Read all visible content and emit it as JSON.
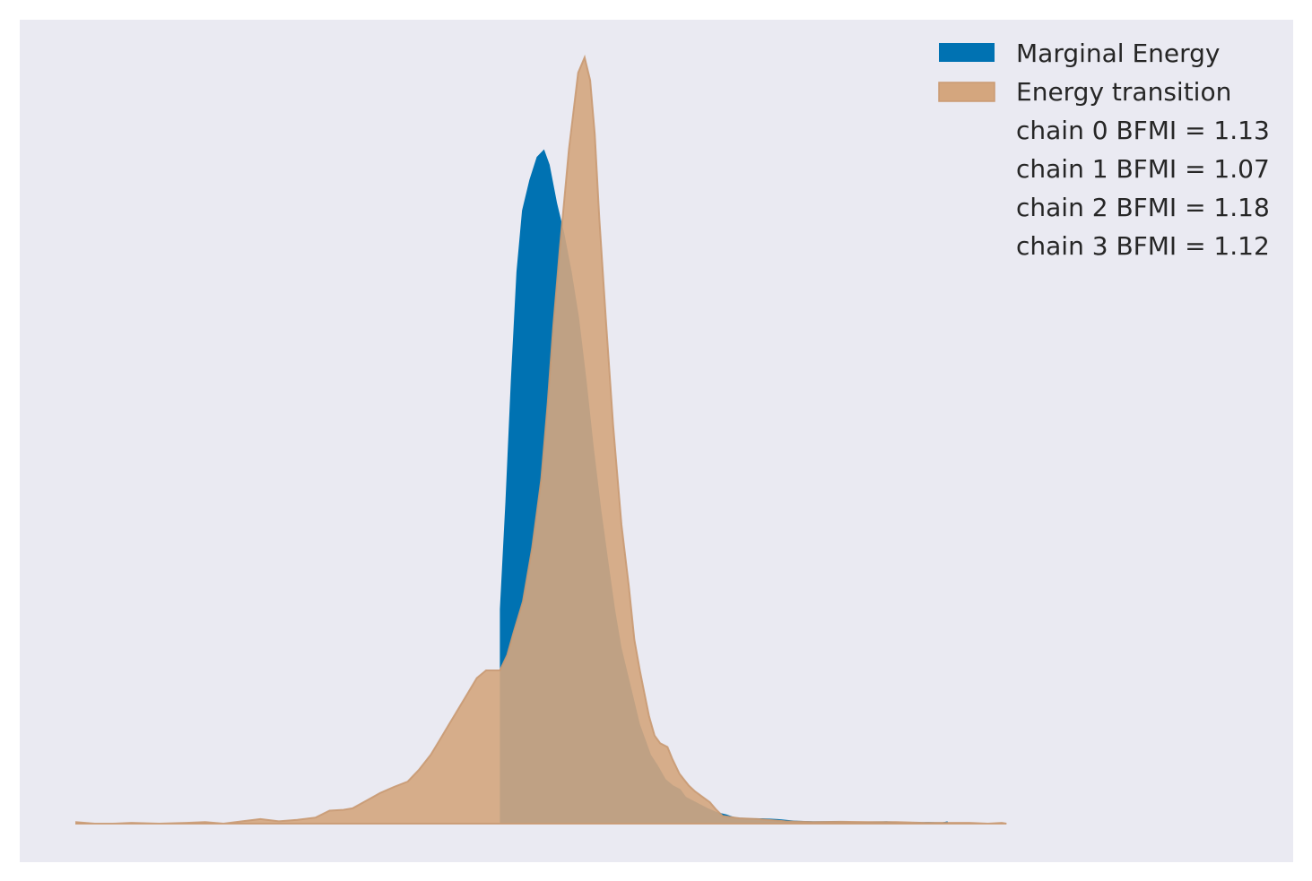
{
  "chart_data": {
    "type": "area",
    "title": "",
    "xlabel": "",
    "ylabel": "",
    "axes_visible": false,
    "grid": false,
    "legend_position": "top-right",
    "xlim": [
      -6.9,
      5.7
    ],
    "ylim": [
      0,
      1.05
    ],
    "series": [
      {
        "name": "Marginal Energy",
        "color": "#0072b2",
        "opacity": 1.0,
        "points": [
          [
            -2.3,
            0
          ],
          [
            -2.3,
            0.28
          ],
          [
            -2.24,
            0.42
          ],
          [
            -2.18,
            0.58
          ],
          [
            -2.12,
            0.72
          ],
          [
            -2.06,
            0.8
          ],
          [
            -1.98,
            0.84
          ],
          [
            -1.9,
            0.87
          ],
          [
            -1.82,
            0.88
          ],
          [
            -1.76,
            0.86
          ],
          [
            -1.68,
            0.81
          ],
          [
            -1.6,
            0.77
          ],
          [
            -1.52,
            0.72
          ],
          [
            -1.44,
            0.66
          ],
          [
            -1.36,
            0.58
          ],
          [
            -1.28,
            0.49
          ],
          [
            -1.2,
            0.41
          ],
          [
            -1.12,
            0.34
          ],
          [
            -1.05,
            0.28
          ],
          [
            -0.98,
            0.23
          ],
          [
            -0.9,
            0.19
          ],
          [
            -0.84,
            0.16
          ],
          [
            -0.78,
            0.13
          ],
          [
            -0.72,
            0.11
          ],
          [
            -0.66,
            0.09
          ],
          [
            -0.58,
            0.075
          ],
          [
            -0.5,
            0.058
          ],
          [
            -0.42,
            0.05
          ],
          [
            -0.34,
            0.045
          ],
          [
            -0.28,
            0.035
          ],
          [
            -0.2,
            0.03
          ],
          [
            -0.12,
            0.025
          ],
          [
            -0.04,
            0.02
          ],
          [
            0.06,
            0.015
          ],
          [
            0.16,
            0.012
          ],
          [
            0.26,
            0.008
          ],
          [
            0.38,
            0.007
          ],
          [
            0.55,
            0.007
          ],
          [
            0.72,
            0.006
          ],
          [
            0.9,
            0.004
          ],
          [
            1.1,
            0.003
          ],
          [
            1.35,
            0.003
          ],
          [
            1.6,
            0.002
          ],
          [
            1.9,
            0.003
          ],
          [
            2.1,
            0.001
          ],
          [
            2.35,
            0.002
          ],
          [
            2.5,
            0.0015
          ],
          [
            2.56,
            0.003
          ],
          [
            2.57,
            0
          ]
        ]
      },
      {
        "name": "Energy transition",
        "color": "#d4a67e",
        "opacity": 0.9,
        "points": [
          [
            -6.9,
            0.002
          ],
          [
            -6.7,
            0.0
          ],
          [
            -6.5,
            0.0
          ],
          [
            -6.3,
            0.001
          ],
          [
            -6.0,
            0.0
          ],
          [
            -5.7,
            0.001
          ],
          [
            -5.5,
            0.002
          ],
          [
            -5.3,
            0.0
          ],
          [
            -5.1,
            0.003
          ],
          [
            -4.9,
            0.006
          ],
          [
            -4.7,
            0.003
          ],
          [
            -4.5,
            0.005
          ],
          [
            -4.3,
            0.008
          ],
          [
            -4.15,
            0.017
          ],
          [
            -4.0,
            0.018
          ],
          [
            -3.9,
            0.02
          ],
          [
            -3.75,
            0.03
          ],
          [
            -3.6,
            0.04
          ],
          [
            -3.45,
            0.048
          ],
          [
            -3.3,
            0.055
          ],
          [
            -3.18,
            0.07
          ],
          [
            -3.05,
            0.09
          ],
          [
            -2.95,
            0.11
          ],
          [
            -2.85,
            0.13
          ],
          [
            -2.75,
            0.15
          ],
          [
            -2.65,
            0.17
          ],
          [
            -2.55,
            0.19
          ],
          [
            -2.45,
            0.2
          ],
          [
            -2.35,
            0.2
          ],
          [
            -2.3,
            0.2
          ],
          [
            -2.22,
            0.22
          ],
          [
            -2.15,
            0.25
          ],
          [
            -2.05,
            0.29
          ],
          [
            -1.95,
            0.36
          ],
          [
            -1.85,
            0.45
          ],
          [
            -1.78,
            0.55
          ],
          [
            -1.72,
            0.65
          ],
          [
            -1.65,
            0.75
          ],
          [
            -1.55,
            0.88
          ],
          [
            -1.45,
            0.98
          ],
          [
            -1.38,
            1.0
          ],
          [
            -1.32,
            0.97
          ],
          [
            -1.27,
            0.9
          ],
          [
            -1.22,
            0.79
          ],
          [
            -1.15,
            0.66
          ],
          [
            -1.07,
            0.52
          ],
          [
            -0.98,
            0.39
          ],
          [
            -0.9,
            0.31
          ],
          [
            -0.84,
            0.24
          ],
          [
            -0.78,
            0.2
          ],
          [
            -0.73,
            0.17
          ],
          [
            -0.68,
            0.14
          ],
          [
            -0.62,
            0.115
          ],
          [
            -0.56,
            0.105
          ],
          [
            -0.48,
            0.1
          ],
          [
            -0.43,
            0.085
          ],
          [
            -0.35,
            0.065
          ],
          [
            -0.25,
            0.05
          ],
          [
            -0.18,
            0.042
          ],
          [
            -0.1,
            0.035
          ],
          [
            -0.02,
            0.028
          ],
          [
            0.05,
            0.018
          ],
          [
            0.12,
            0.01
          ],
          [
            0.3,
            0.007
          ],
          [
            0.5,
            0.006
          ],
          [
            0.8,
            0.003
          ],
          [
            1.1,
            0.002
          ],
          [
            1.4,
            0.0025
          ],
          [
            1.7,
            0.002
          ],
          [
            2.0,
            0.002
          ],
          [
            2.3,
            0.001
          ],
          [
            2.6,
            0.001
          ],
          [
            2.8,
            0.001
          ],
          [
            3.0,
            0.0
          ],
          [
            3.15,
            0.001
          ],
          [
            3.2,
            0.0
          ]
        ]
      }
    ],
    "legend": {
      "entries": [
        "Marginal Energy",
        "Energy transition"
      ],
      "bfmi": [
        "chain  0 BFMI = 1.13",
        "chain  1 BFMI = 1.07",
        "chain  2 BFMI = 1.18",
        "chain  3 BFMI = 1.12"
      ]
    }
  }
}
